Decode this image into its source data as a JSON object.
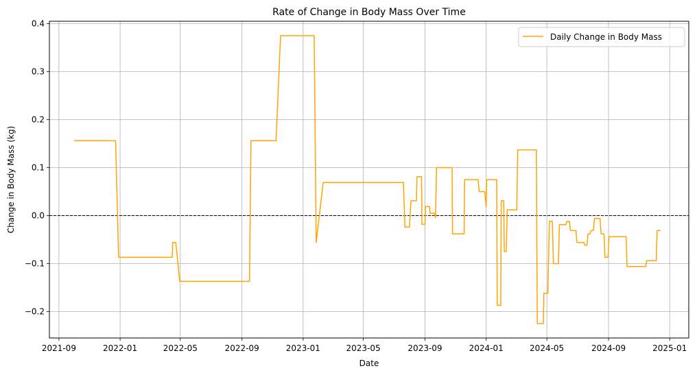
{
  "chart_data": {
    "type": "line",
    "title": "Rate of Change in Body Mass Over Time",
    "xlabel": "Date",
    "ylabel": "Change in Body Mass (kg)",
    "xlim": [
      "2021-08-13",
      "2025-02-08"
    ],
    "ylim": [
      -0.255,
      0.405
    ],
    "x_ticks": [
      "2021-09",
      "2022-01",
      "2022-05",
      "2022-09",
      "2023-01",
      "2023-05",
      "2023-09",
      "2024-01",
      "2024-05",
      "2024-09",
      "2025-01"
    ],
    "y_ticks": [
      -0.2,
      -0.1,
      0.0,
      0.1,
      0.2,
      0.3,
      0.4
    ],
    "y_tick_labels": [
      "−0.2",
      "−0.1",
      "0.0",
      "0.1",
      "0.2",
      "0.3",
      "0.4"
    ],
    "grid": true,
    "legend_position": "top-right",
    "reference_line": {
      "y": 0.0,
      "style": "dashed",
      "color": "#000000"
    },
    "series": [
      {
        "name": "Daily Change in Body Mass",
        "color": "#FFA500",
        "points": [
          [
            "2021-10-01",
            0.156
          ],
          [
            "2021-12-23",
            0.156
          ],
          [
            "2021-12-29",
            -0.087
          ],
          [
            "2022-04-15",
            -0.087
          ],
          [
            "2022-04-16",
            -0.056
          ],
          [
            "2022-04-22",
            -0.056
          ],
          [
            "2022-04-30",
            -0.137
          ],
          [
            "2022-09-16",
            -0.137
          ],
          [
            "2022-09-19",
            0.156
          ],
          [
            "2022-11-08",
            0.156
          ],
          [
            "2022-11-17",
            0.375
          ],
          [
            "2023-01-23",
            0.375
          ],
          [
            "2023-01-27",
            -0.056
          ],
          [
            "2023-02-10",
            0.069
          ],
          [
            "2023-07-20",
            0.069
          ],
          [
            "2023-07-23",
            -0.024
          ],
          [
            "2023-08-01",
            -0.024
          ],
          [
            "2023-08-04",
            0.031
          ],
          [
            "2023-08-15",
            0.031
          ],
          [
            "2023-08-16",
            0.081
          ],
          [
            "2023-08-25",
            0.081
          ],
          [
            "2023-08-26",
            -0.018
          ],
          [
            "2023-09-01",
            -0.018
          ],
          [
            "2023-09-02",
            0.019
          ],
          [
            "2023-09-10",
            0.019
          ],
          [
            "2023-09-11",
            0.005
          ],
          [
            "2023-09-20",
            0.005
          ],
          [
            "2023-09-22",
            -0.004
          ],
          [
            "2023-09-24",
            0.1
          ],
          [
            "2023-10-25",
            0.1
          ],
          [
            "2023-10-26",
            -0.038
          ],
          [
            "2023-11-18",
            -0.038
          ],
          [
            "2023-11-19",
            0.075
          ],
          [
            "2023-12-16",
            0.075
          ],
          [
            "2023-12-18",
            0.05
          ],
          [
            "2023-12-29",
            0.05
          ],
          [
            "2024-01-01",
            0.018
          ],
          [
            "2024-01-02",
            0.075
          ],
          [
            "2024-01-22",
            0.075
          ],
          [
            "2024-01-23",
            -0.187
          ],
          [
            "2024-01-30",
            -0.187
          ],
          [
            "2024-01-31",
            0.031
          ],
          [
            "2024-02-05",
            0.031
          ],
          [
            "2024-02-06",
            -0.075
          ],
          [
            "2024-02-10",
            -0.075
          ],
          [
            "2024-02-12",
            0.012
          ],
          [
            "2024-03-02",
            0.012
          ],
          [
            "2024-03-04",
            0.137
          ],
          [
            "2024-04-10",
            0.137
          ],
          [
            "2024-04-12",
            -0.225
          ],
          [
            "2024-04-24",
            -0.225
          ],
          [
            "2024-04-25",
            -0.162
          ],
          [
            "2024-05-03",
            -0.162
          ],
          [
            "2024-05-06",
            -0.012
          ],
          [
            "2024-05-12",
            -0.012
          ],
          [
            "2024-05-14",
            -0.1
          ],
          [
            "2024-05-24",
            -0.1
          ],
          [
            "2024-05-26",
            -0.019
          ],
          [
            "2024-06-08",
            -0.019
          ],
          [
            "2024-06-10",
            -0.012
          ],
          [
            "2024-06-15",
            -0.012
          ],
          [
            "2024-06-17",
            -0.031
          ],
          [
            "2024-06-28",
            -0.031
          ],
          [
            "2024-06-30",
            -0.056
          ],
          [
            "2024-07-14",
            -0.056
          ],
          [
            "2024-07-16",
            -0.062
          ],
          [
            "2024-07-20",
            -0.062
          ],
          [
            "2024-07-22",
            -0.038
          ],
          [
            "2024-07-26",
            -0.038
          ],
          [
            "2024-07-28",
            -0.031
          ],
          [
            "2024-08-02",
            -0.031
          ],
          [
            "2024-08-04",
            -0.006
          ],
          [
            "2024-08-15",
            -0.006
          ],
          [
            "2024-08-17",
            -0.038
          ],
          [
            "2024-08-23",
            -0.038
          ],
          [
            "2024-08-25",
            -0.087
          ],
          [
            "2024-08-31",
            -0.087
          ],
          [
            "2024-09-02",
            -0.044
          ],
          [
            "2024-10-06",
            -0.044
          ],
          [
            "2024-10-08",
            -0.106
          ],
          [
            "2024-11-14",
            -0.106
          ],
          [
            "2024-11-16",
            -0.094
          ],
          [
            "2024-12-05",
            -0.094
          ],
          [
            "2024-12-07",
            -0.031
          ],
          [
            "2024-12-14",
            -0.031
          ]
        ]
      }
    ]
  }
}
